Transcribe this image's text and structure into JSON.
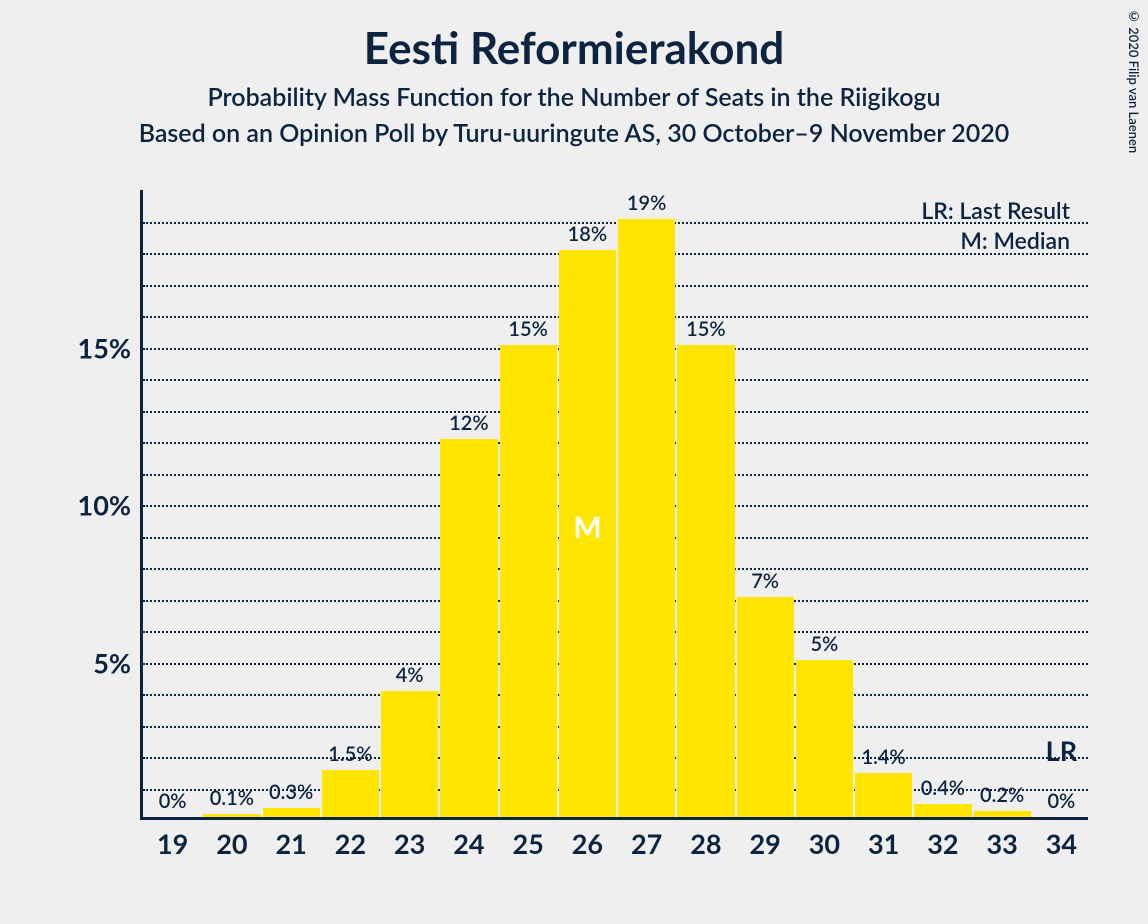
{
  "copyright": "© 2020 Filip van Laenen",
  "titles": {
    "main": "Eesti Reformierakond",
    "sub1": "Probability Mass Function for the Number of Seats in the Riigikogu",
    "sub2": "Based on an Opinion Poll by Turu-uuringute AS, 30 October–9 November 2020"
  },
  "legend": {
    "lr": "LR: Last Result",
    "m": "M: Median"
  },
  "chart": {
    "type": "bar",
    "bar_color": "#ffe500",
    "axis_color": "#0c243f",
    "grid_color": "#0c243f",
    "background_color": "#f0efef",
    "text_color": "#0c243f",
    "median_text_color": "#ffffff",
    "title_fontsize": 44,
    "subtitle_fontsize": 25,
    "tick_fontsize": 27,
    "barlabel_fontsize": 20,
    "ymax": 20,
    "grid_step": 1,
    "ytick_major": [
      5,
      10,
      15
    ],
    "categories": [
      "19",
      "20",
      "21",
      "22",
      "23",
      "24",
      "25",
      "26",
      "27",
      "28",
      "29",
      "30",
      "31",
      "32",
      "33",
      "34"
    ],
    "values": [
      0,
      0.1,
      0.3,
      1.5,
      4,
      12,
      15,
      18,
      19,
      15,
      7,
      5,
      1.4,
      0.4,
      0.2,
      0
    ],
    "value_labels": [
      "0%",
      "0.1%",
      "0.3%",
      "1.5%",
      "4%",
      "12%",
      "15%",
      "18%",
      "19%",
      "15%",
      "7%",
      "5%",
      "1.4%",
      "0.4%",
      "0.2%",
      "0%"
    ],
    "median_index": 7,
    "median_label": "M",
    "lr_index": 15,
    "lr_label": "LR"
  }
}
